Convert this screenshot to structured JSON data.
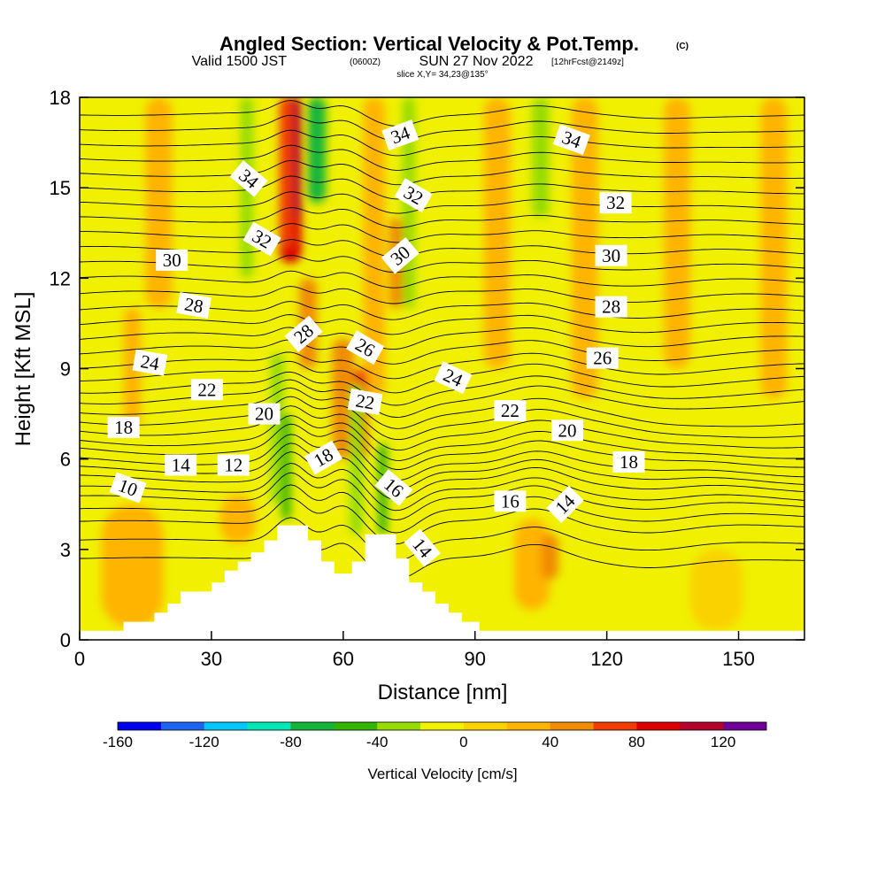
{
  "header": {
    "title": "Angled Section: Vertical Velocity & Pot.Temp.",
    "title_units": "(C)",
    "valid_prefix": "Valid 1500 JST",
    "valid_utc": "(0600Z)",
    "valid_date": "SUN 27 Nov 2022",
    "forecast_info": "[12hrFcst@2149z]",
    "slice_info": "slice X,Y= 34,23@135°"
  },
  "chart_data": {
    "type": "heatmap",
    "title": "Angled Section: Vertical Velocity & Pot.Temp.",
    "xlabel": "Distance [nm]",
    "ylabel": "Height [Kft MSL]",
    "xlim": [
      0,
      165
    ],
    "ylim": [
      0,
      18
    ],
    "x_ticks": [
      "0",
      "30",
      "60",
      "90",
      "120",
      "150"
    ],
    "y_ticks": [
      "0",
      "3",
      "6",
      "9",
      "12",
      "15",
      "18"
    ],
    "x_tick_values": [
      0,
      30,
      60,
      90,
      120,
      150
    ],
    "y_tick_values": [
      0,
      3,
      6,
      9,
      12,
      15,
      18
    ],
    "terrain": [
      [
        0,
        0.3
      ],
      [
        10,
        0.3
      ],
      [
        10,
        0.6
      ],
      [
        17,
        0.6
      ],
      [
        17,
        0.9
      ],
      [
        20,
        0.9
      ],
      [
        20,
        1.2
      ],
      [
        23,
        1.2
      ],
      [
        23,
        1.6
      ],
      [
        30,
        1.6
      ],
      [
        30,
        1.9
      ],
      [
        33,
        1.9
      ],
      [
        33,
        2.3
      ],
      [
        36,
        2.3
      ],
      [
        36,
        2.6
      ],
      [
        39,
        2.6
      ],
      [
        39,
        2.9
      ],
      [
        42,
        2.9
      ],
      [
        42,
        3.3
      ],
      [
        45,
        3.3
      ],
      [
        45,
        3.8
      ],
      [
        52,
        3.8
      ],
      [
        52,
        3.3
      ],
      [
        55,
        3.3
      ],
      [
        55,
        2.6
      ],
      [
        58,
        2.6
      ],
      [
        58,
        2.2
      ],
      [
        62,
        2.2
      ],
      [
        62,
        2.6
      ],
      [
        65,
        2.6
      ],
      [
        65,
        3.5
      ],
      [
        72,
        3.5
      ],
      [
        72,
        2.7
      ],
      [
        75,
        2.7
      ],
      [
        75,
        1.9
      ],
      [
        78,
        1.9
      ],
      [
        78,
        1.6
      ],
      [
        81,
        1.6
      ],
      [
        81,
        1.2
      ],
      [
        84,
        1.2
      ],
      [
        84,
        0.9
      ],
      [
        87,
        0.9
      ],
      [
        87,
        0.6
      ],
      [
        91,
        0.6
      ],
      [
        91,
        0.3
      ],
      [
        165,
        0.3
      ]
    ],
    "velocity_features": [
      {
        "x": 48,
        "y0": 12.5,
        "y1": 18,
        "w": 5,
        "value": 80
      },
      {
        "x": 49,
        "y0": 14,
        "y1": 18,
        "w": 3,
        "value": 100
      },
      {
        "x": 54,
        "y0": 14.5,
        "y1": 18,
        "w": 4,
        "value": -80
      },
      {
        "x": 47,
        "y0": 13,
        "y1": 18,
        "w": 3,
        "value": 60
      },
      {
        "x": 32,
        "y0": 10,
        "y1": 18,
        "w": 8,
        "value": -20
      },
      {
        "x": 38,
        "y0": 12,
        "y1": 18,
        "w": 3,
        "value": -40
      },
      {
        "x": 26,
        "y0": 14,
        "y1": 18,
        "w": 3,
        "value": -20
      },
      {
        "x": 79,
        "y0": 8.5,
        "y1": 18,
        "w": 6,
        "value": -20
      },
      {
        "x": 75,
        "y0": 11,
        "y1": 18,
        "w": 3,
        "value": -40
      },
      {
        "x": 106,
        "y0": 10,
        "y1": 18,
        "w": 6,
        "value": -20
      },
      {
        "x": 105,
        "y0": 14,
        "y1": 18,
        "w": 4,
        "value": -40
      },
      {
        "x": 127,
        "y0": 14,
        "y1": 18,
        "w": 3,
        "value": -20
      },
      {
        "x": 67,
        "y0": 8,
        "y1": 18,
        "w": 5,
        "value": 20
      },
      {
        "x": 95,
        "y0": 9,
        "y1": 18,
        "w": 6,
        "value": 20
      },
      {
        "x": 115,
        "y0": 8,
        "y1": 18,
        "w": 6,
        "value": 20
      },
      {
        "x": 136,
        "y0": 9,
        "y1": 18,
        "w": 6,
        "value": 20
      },
      {
        "x": 158,
        "y0": 8,
        "y1": 18,
        "w": 6,
        "value": 20
      },
      {
        "x": 18,
        "y0": 11,
        "y1": 18,
        "w": 6,
        "value": 20
      },
      {
        "x": 12,
        "y0": 7,
        "y1": 11,
        "w": 4,
        "value": 20
      },
      {
        "x": 60,
        "y0": 6,
        "y1": 10,
        "w": 5,
        "value": 40
      },
      {
        "x": 64,
        "y0": 6,
        "y1": 9,
        "w": 3,
        "value": 60
      },
      {
        "x": 45,
        "y0": 4.5,
        "y1": 9.5,
        "w": 3,
        "value": -40
      },
      {
        "x": 47,
        "y0": 4,
        "y1": 7.5,
        "w": 2,
        "value": -60
      },
      {
        "x": 63,
        "y0": 3.5,
        "y1": 8.5,
        "w": 3,
        "value": -40
      },
      {
        "x": 69,
        "y0": 3.5,
        "y1": 6.5,
        "w": 2,
        "value": -60
      },
      {
        "x": 75,
        "y0": 2,
        "y1": 4.5,
        "w": 3,
        "value": -20
      },
      {
        "x": 103,
        "y0": 1,
        "y1": 4,
        "w": 8,
        "value": 20
      },
      {
        "x": 107,
        "y0": 2,
        "y1": 3.5,
        "w": 4,
        "value": 40
      },
      {
        "x": 12,
        "y0": 0.4,
        "y1": 4.5,
        "w": 14,
        "value": 20
      },
      {
        "x": 36,
        "y0": 3.2,
        "y1": 4.8,
        "w": 8,
        "value": 20
      },
      {
        "x": 145,
        "y0": 0.3,
        "y1": 3,
        "w": 12,
        "value": 0
      },
      {
        "x": 52,
        "y0": 9,
        "y1": 12,
        "w": 4,
        "value": 40
      },
      {
        "x": 72,
        "y0": 11,
        "y1": 14,
        "w": 3,
        "value": 40
      }
    ],
    "isentropes": [
      {
        "y0": 2.7,
        "a": 0.25,
        "bend": 0.8
      },
      {
        "y0": 3.3,
        "a": 0.35,
        "bend": 0.8
      },
      {
        "y0": 3.9,
        "a": 0.45,
        "bend": 0.85
      },
      {
        "y0": 4.3,
        "a": 0.55,
        "bend": 0.9
      },
      {
        "y0": 4.7,
        "a": 0.7,
        "bend": 0.9
      },
      {
        "y0": 5.0,
        "a": 0.85,
        "bend": 0.9
      },
      {
        "y0": 5.35,
        "a": 0.95,
        "bend": 0.9
      },
      {
        "y0": 5.65,
        "a": 1.05,
        "bend": 0.85
      },
      {
        "y0": 5.95,
        "a": 1.15,
        "bend": 0.8
      },
      {
        "y0": 6.3,
        "a": 1.25,
        "bend": 0.75
      },
      {
        "y0": 6.6,
        "a": 1.3,
        "bend": 0.7
      },
      {
        "y0": 6.95,
        "a": 1.35,
        "bend": 0.65
      },
      {
        "y0": 7.3,
        "a": 1.4,
        "bend": 0.6
      },
      {
        "y0": 7.65,
        "a": 1.4,
        "bend": 0.55
      },
      {
        "y0": 8.0,
        "a": 1.4,
        "bend": 0.5
      },
      {
        "y0": 8.35,
        "a": 1.35,
        "bend": 0.45
      },
      {
        "y0": 8.75,
        "a": 1.3,
        "bend": 0.45
      },
      {
        "y0": 9.15,
        "a": 1.25,
        "bend": 0.4
      },
      {
        "y0": 9.6,
        "a": 1.2,
        "bend": 0.4
      },
      {
        "y0": 10.05,
        "a": 1.15,
        "bend": 0.4
      },
      {
        "y0": 10.5,
        "a": 1.1,
        "bend": 0.4
      },
      {
        "y0": 10.95,
        "a": 1.05,
        "bend": 0.4
      },
      {
        "y0": 11.45,
        "a": 1.0,
        "bend": 0.4
      },
      {
        "y0": 11.95,
        "a": 0.95,
        "bend": 0.4
      },
      {
        "y0": 12.45,
        "a": 0.9,
        "bend": 0.4
      },
      {
        "y0": 12.95,
        "a": 0.85,
        "bend": 0.4
      },
      {
        "y0": 13.45,
        "a": 0.8,
        "bend": 0.4
      },
      {
        "y0": 13.95,
        "a": 0.75,
        "bend": 0.4
      },
      {
        "y0": 14.45,
        "a": 0.7,
        "bend": 0.4
      },
      {
        "y0": 14.95,
        "a": 0.65,
        "bend": 0.4
      },
      {
        "y0": 15.45,
        "a": 0.6,
        "bend": 0.4
      },
      {
        "y0": 15.95,
        "a": 0.55,
        "bend": 0.4
      },
      {
        "y0": 16.45,
        "a": 0.5,
        "bend": 0.4
      },
      {
        "y0": 16.95,
        "a": 0.45,
        "bend": 0.4
      },
      {
        "y0": 17.45,
        "a": 0.4,
        "bend": 0.4
      }
    ],
    "contour_labels": [
      {
        "text": "10",
        "x": 11,
        "y": 5.05,
        "angle": 20
      },
      {
        "text": "14",
        "x": 23,
        "y": 5.8,
        "angle": 0
      },
      {
        "text": "12",
        "x": 35,
        "y": 5.8,
        "angle": 0
      },
      {
        "text": "18",
        "x": 10,
        "y": 7.05,
        "angle": 0
      },
      {
        "text": "20",
        "x": 42,
        "y": 7.5,
        "angle": 0
      },
      {
        "text": "22",
        "x": 29,
        "y": 8.3,
        "angle": 0
      },
      {
        "text": "24",
        "x": 16,
        "y": 9.2,
        "angle": 10
      },
      {
        "text": "28",
        "x": 26,
        "y": 11.1,
        "angle": 10
      },
      {
        "text": "30",
        "x": 21,
        "y": 12.6,
        "angle": 0
      },
      {
        "text": "32",
        "x": 41.5,
        "y": 13.3,
        "angle": 30
      },
      {
        "text": "34",
        "x": 38.5,
        "y": 15.3,
        "angle": 40
      },
      {
        "text": "28",
        "x": 51,
        "y": 10.15,
        "angle": -40
      },
      {
        "text": "18",
        "x": 55.5,
        "y": 6.05,
        "angle": -30
      },
      {
        "text": "26",
        "x": 65,
        "y": 9.7,
        "angle": 30
      },
      {
        "text": "22",
        "x": 65,
        "y": 7.9,
        "angle": 10
      },
      {
        "text": "16",
        "x": 71.5,
        "y": 5.05,
        "angle": 40
      },
      {
        "text": "14",
        "x": 78,
        "y": 3.05,
        "angle": 50
      },
      {
        "text": "24",
        "x": 85,
        "y": 8.7,
        "angle": 25
      },
      {
        "text": "30",
        "x": 73,
        "y": 12.75,
        "angle": -40
      },
      {
        "text": "32",
        "x": 76,
        "y": 14.75,
        "angle": 30
      },
      {
        "text": "34",
        "x": 73,
        "y": 16.75,
        "angle": -20
      },
      {
        "text": "22",
        "x": 98,
        "y": 7.6,
        "angle": 0
      },
      {
        "text": "16",
        "x": 98,
        "y": 4.6,
        "angle": 0
      },
      {
        "text": "14",
        "x": 110.5,
        "y": 4.5,
        "angle": -45
      },
      {
        "text": "20",
        "x": 111,
        "y": 6.95,
        "angle": 0
      },
      {
        "text": "18",
        "x": 125,
        "y": 5.9,
        "angle": 0
      },
      {
        "text": "26",
        "x": 119,
        "y": 9.35,
        "angle": 0
      },
      {
        "text": "28",
        "x": 121,
        "y": 11.05,
        "angle": 0
      },
      {
        "text": "30",
        "x": 121,
        "y": 12.75,
        "angle": 0
      },
      {
        "text": "32",
        "x": 122,
        "y": 14.5,
        "angle": 0
      },
      {
        "text": "34",
        "x": 112,
        "y": 16.6,
        "angle": 20
      }
    ]
  },
  "colorbar": {
    "label": "Vertical Velocity [cm/s]",
    "tick_labels": [
      "-160",
      "-120",
      "-80",
      "-40",
      "0",
      "40",
      "80",
      "120"
    ],
    "tick_values": [
      -160,
      -120,
      -80,
      -40,
      0,
      40,
      80,
      120
    ],
    "range": [
      -160,
      140
    ],
    "colors": [
      "#0000f0",
      "#1e64f0",
      "#00c8ff",
      "#00e6b4",
      "#14b43c",
      "#32b400",
      "#96dc00",
      "#f0f000",
      "#fad200",
      "#ffb400",
      "#f08c00",
      "#f03c00",
      "#dc0000",
      "#b4002d",
      "#6e0096"
    ]
  }
}
